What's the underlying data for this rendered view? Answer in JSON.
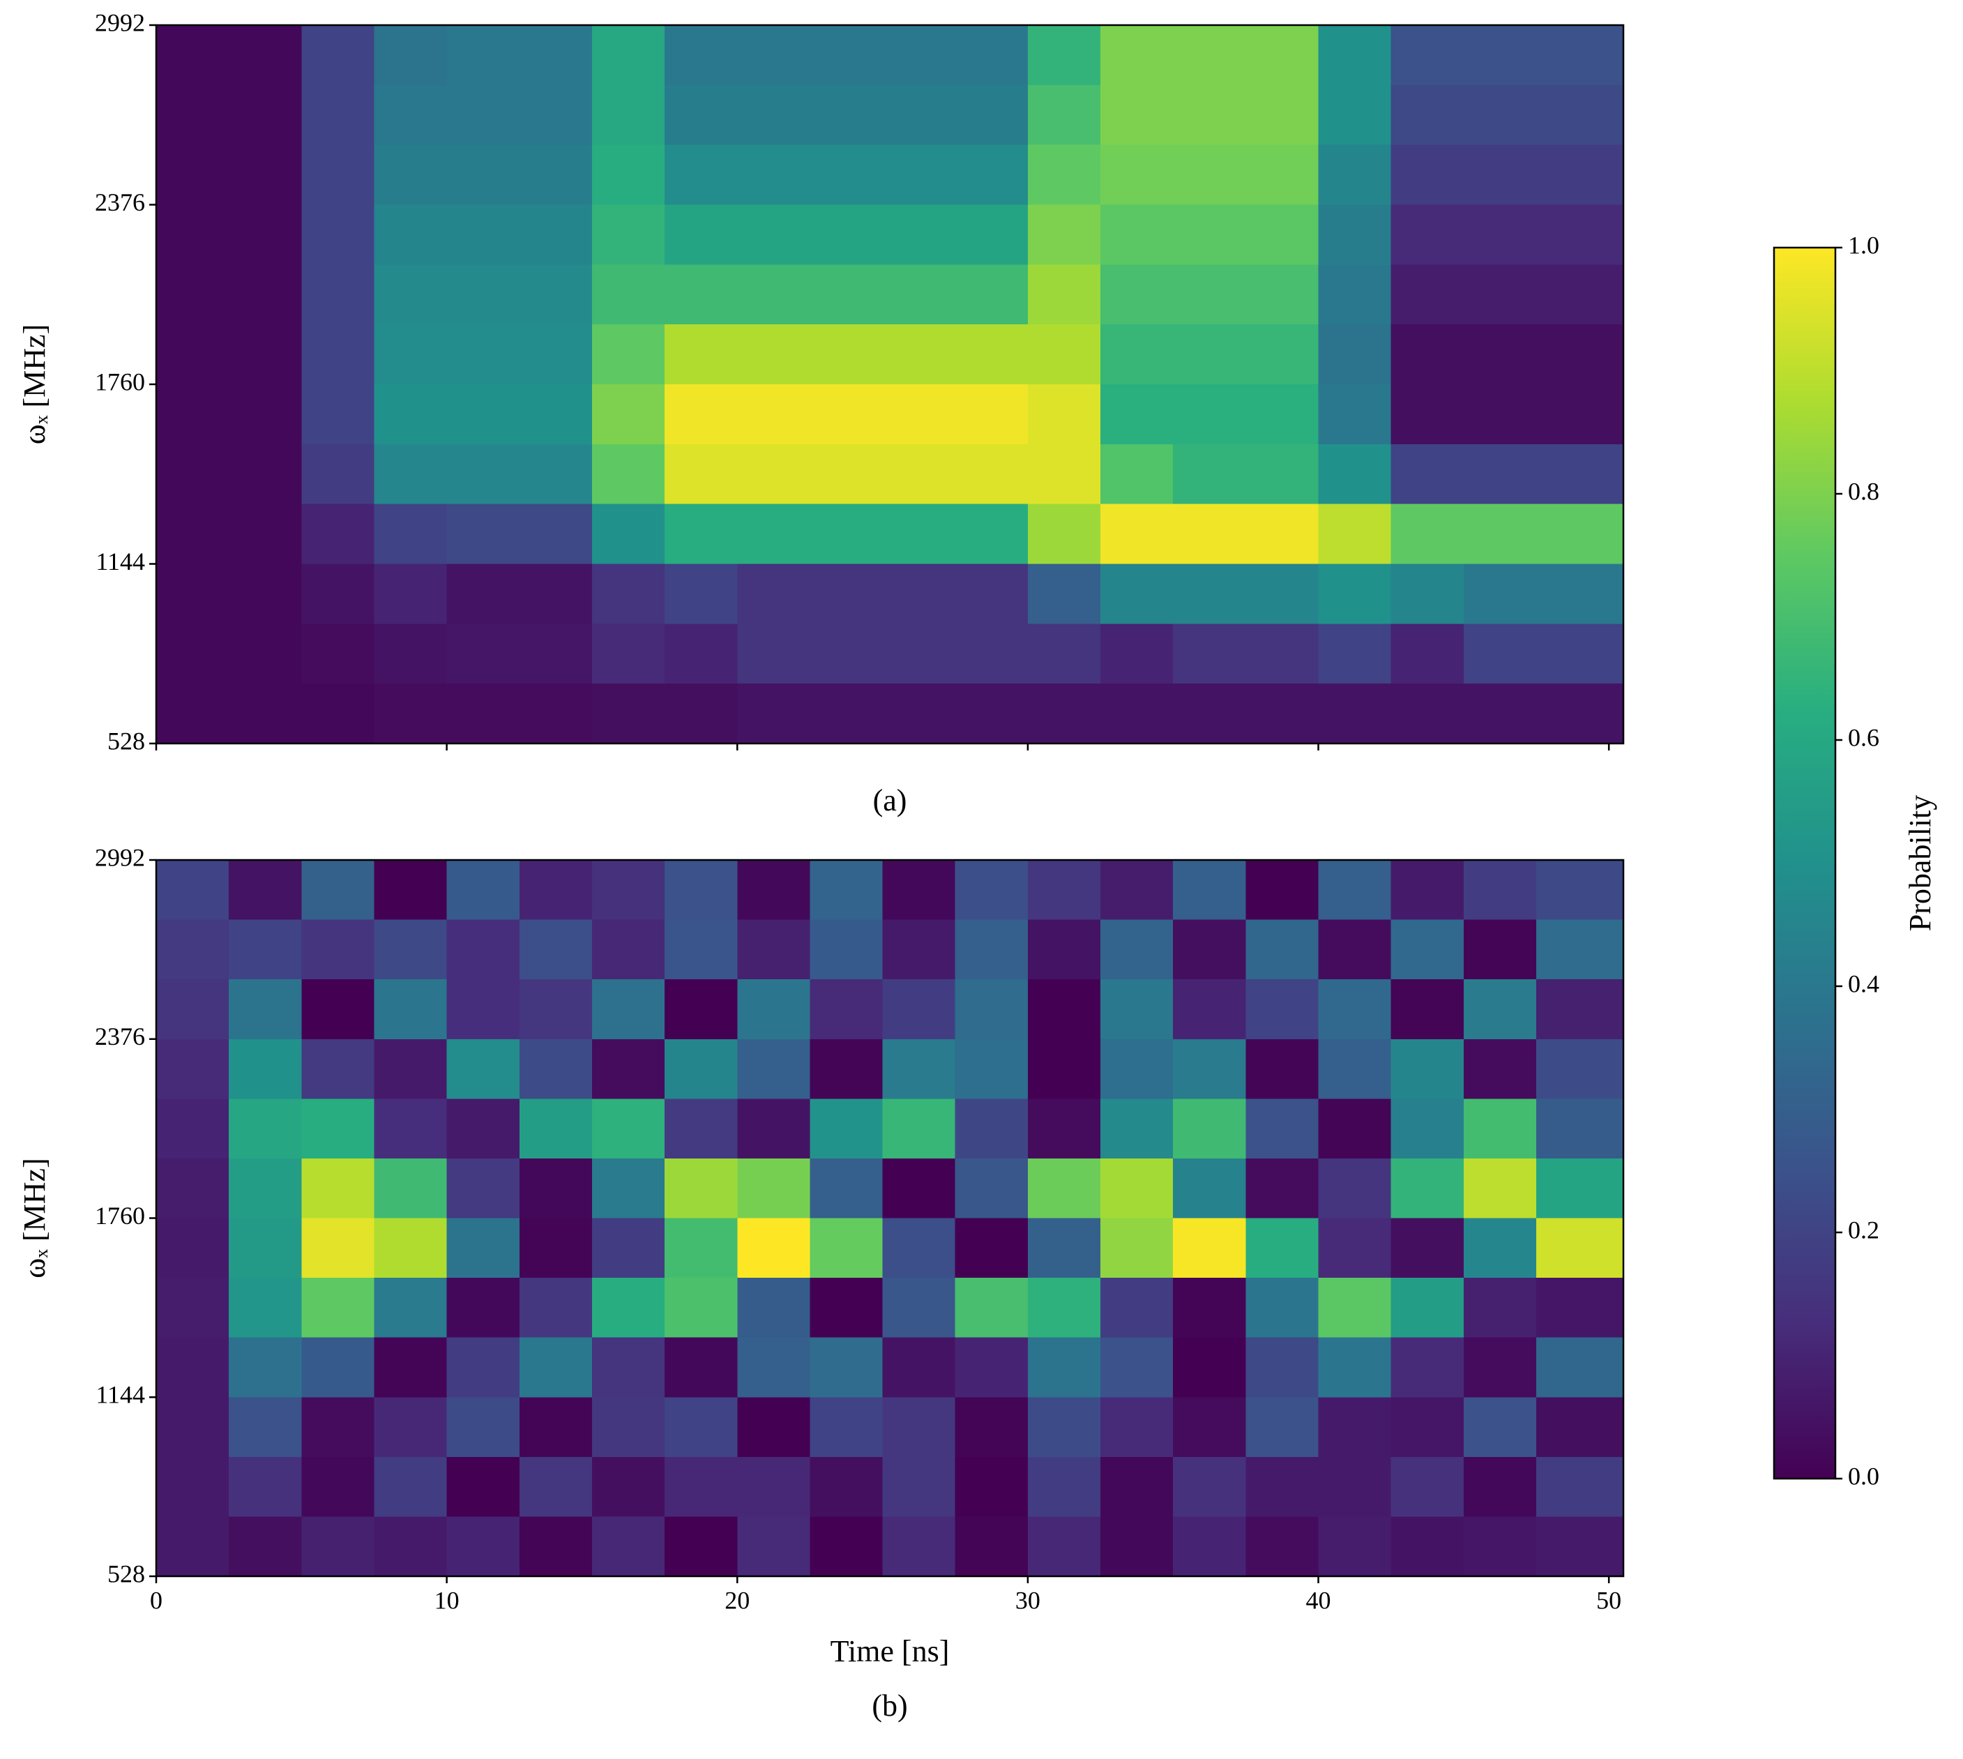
{
  "chart_data": [
    {
      "type": "heatmap",
      "caption": "(a)",
      "ylabel": "ωₓ [MHz]",
      "show_xtick_labels": false,
      "xlim": [
        0,
        50.5
      ],
      "ylim": [
        528,
        2992
      ],
      "xticks": [
        0,
        10,
        20,
        30,
        40,
        50
      ],
      "yticks": [
        528,
        1144,
        1760,
        2376,
        2992
      ],
      "x": [
        1.25,
        3.75,
        6.25,
        8.75,
        11.25,
        13.75,
        16.25,
        18.75,
        21.25,
        23.75,
        26.25,
        28.75,
        31.25,
        33.75,
        36.25,
        38.75,
        41.25,
        43.75,
        46.25,
        48.75
      ],
      "y": [
        2889,
        2684,
        2479,
        2273,
        2068,
        1863,
        1657,
        1452,
        1247,
        1041,
        836,
        631
      ],
      "values": [
        [
          0.02,
          0.02,
          0.2,
          0.38,
          0.4,
          0.4,
          0.6,
          0.4,
          0.4,
          0.4,
          0.4,
          0.4,
          0.65,
          0.8,
          0.8,
          0.8,
          0.5,
          0.25,
          0.25,
          0.25
        ],
        [
          0.02,
          0.02,
          0.2,
          0.4,
          0.4,
          0.4,
          0.6,
          0.42,
          0.42,
          0.42,
          0.42,
          0.42,
          0.7,
          0.8,
          0.8,
          0.8,
          0.5,
          0.22,
          0.22,
          0.22
        ],
        [
          0.02,
          0.02,
          0.2,
          0.42,
          0.42,
          0.42,
          0.62,
          0.48,
          0.48,
          0.48,
          0.48,
          0.48,
          0.75,
          0.78,
          0.78,
          0.78,
          0.45,
          0.18,
          0.18,
          0.18
        ],
        [
          0.02,
          0.02,
          0.2,
          0.45,
          0.45,
          0.45,
          0.65,
          0.58,
          0.58,
          0.58,
          0.58,
          0.58,
          0.8,
          0.74,
          0.74,
          0.74,
          0.42,
          0.12,
          0.12,
          0.12
        ],
        [
          0.02,
          0.02,
          0.2,
          0.47,
          0.47,
          0.47,
          0.68,
          0.68,
          0.68,
          0.68,
          0.68,
          0.68,
          0.85,
          0.7,
          0.7,
          0.7,
          0.4,
          0.08,
          0.08,
          0.08
        ],
        [
          0.02,
          0.02,
          0.2,
          0.48,
          0.48,
          0.48,
          0.75,
          0.88,
          0.88,
          0.88,
          0.88,
          0.88,
          0.88,
          0.66,
          0.66,
          0.66,
          0.38,
          0.04,
          0.04,
          0.04
        ],
        [
          0.02,
          0.02,
          0.2,
          0.5,
          0.5,
          0.5,
          0.8,
          0.98,
          0.98,
          0.98,
          0.98,
          0.98,
          0.95,
          0.63,
          0.63,
          0.63,
          0.4,
          0.04,
          0.04,
          0.04
        ],
        [
          0.02,
          0.02,
          0.18,
          0.46,
          0.46,
          0.46,
          0.75,
          0.95,
          0.95,
          0.95,
          0.95,
          0.95,
          0.95,
          0.72,
          0.65,
          0.65,
          0.5,
          0.2,
          0.2,
          0.2
        ],
        [
          0.02,
          0.02,
          0.1,
          0.2,
          0.22,
          0.22,
          0.5,
          0.62,
          0.62,
          0.62,
          0.62,
          0.62,
          0.85,
          0.98,
          0.98,
          0.98,
          0.9,
          0.75,
          0.75,
          0.75
        ],
        [
          0.02,
          0.02,
          0.05,
          0.1,
          0.05,
          0.05,
          0.15,
          0.2,
          0.15,
          0.15,
          0.15,
          0.15,
          0.3,
          0.45,
          0.45,
          0.45,
          0.5,
          0.45,
          0.4,
          0.4
        ],
        [
          0.02,
          0.02,
          0.03,
          0.05,
          0.06,
          0.06,
          0.12,
          0.1,
          0.15,
          0.15,
          0.15,
          0.15,
          0.15,
          0.1,
          0.15,
          0.15,
          0.2,
          0.1,
          0.2,
          0.2
        ],
        [
          0.02,
          0.02,
          0.02,
          0.03,
          0.03,
          0.03,
          0.04,
          0.04,
          0.05,
          0.05,
          0.05,
          0.05,
          0.05,
          0.05,
          0.05,
          0.05,
          0.05,
          0.05,
          0.05,
          0.05
        ]
      ]
    },
    {
      "type": "heatmap",
      "caption": "(b)",
      "ylabel": "ωₓ [MHz]",
      "xlabel": "Time [ns]",
      "show_xtick_labels": true,
      "xlim": [
        0,
        50.5
      ],
      "ylim": [
        528,
        2992
      ],
      "xticks": [
        0,
        10,
        20,
        30,
        40,
        50
      ],
      "yticks": [
        528,
        1144,
        1760,
        2376,
        2992
      ],
      "x": [
        1.25,
        3.75,
        6.25,
        8.75,
        11.25,
        13.75,
        16.25,
        18.75,
        21.25,
        23.75,
        26.25,
        28.75,
        31.25,
        33.75,
        36.25,
        38.75,
        41.25,
        43.75,
        46.25,
        48.75
      ],
      "y": [
        2889,
        2684,
        2479,
        2273,
        2068,
        1863,
        1657,
        1452,
        1247,
        1041,
        836,
        631
      ],
      "values": [
        [
          0.2,
          0.05,
          0.31,
          0.0,
          0.28,
          0.1,
          0.14,
          0.25,
          0.02,
          0.32,
          0.02,
          0.24,
          0.16,
          0.08,
          0.3,
          0.0,
          0.3,
          0.07,
          0.18,
          0.22
        ],
        [
          0.17,
          0.2,
          0.15,
          0.22,
          0.13,
          0.24,
          0.11,
          0.26,
          0.09,
          0.28,
          0.07,
          0.3,
          0.05,
          0.32,
          0.04,
          0.33,
          0.03,
          0.34,
          0.01,
          0.35
        ],
        [
          0.15,
          0.38,
          0.0,
          0.39,
          0.13,
          0.16,
          0.37,
          0.0,
          0.39,
          0.12,
          0.18,
          0.35,
          0.0,
          0.4,
          0.1,
          0.2,
          0.34,
          0.01,
          0.41,
          0.09
        ],
        [
          0.12,
          0.5,
          0.17,
          0.07,
          0.48,
          0.23,
          0.03,
          0.45,
          0.3,
          0.01,
          0.41,
          0.36,
          0.0,
          0.36,
          0.41,
          0.01,
          0.3,
          0.45,
          0.03,
          0.23
        ],
        [
          0.1,
          0.59,
          0.62,
          0.13,
          0.07,
          0.55,
          0.64,
          0.17,
          0.05,
          0.51,
          0.66,
          0.21,
          0.03,
          0.47,
          0.68,
          0.25,
          0.01,
          0.43,
          0.69,
          0.29
        ],
        [
          0.08,
          0.55,
          0.89,
          0.68,
          0.17,
          0.02,
          0.41,
          0.85,
          0.79,
          0.3,
          0.0,
          0.27,
          0.77,
          0.86,
          0.44,
          0.03,
          0.15,
          0.65,
          0.9,
          0.58
        ],
        [
          0.07,
          0.54,
          0.96,
          0.88,
          0.38,
          0.01,
          0.18,
          0.69,
          1.0,
          0.76,
          0.24,
          0.0,
          0.31,
          0.83,
          0.99,
          0.62,
          0.12,
          0.04,
          0.46,
          0.93
        ],
        [
          0.08,
          0.52,
          0.75,
          0.41,
          0.02,
          0.16,
          0.62,
          0.71,
          0.29,
          0.0,
          0.27,
          0.7,
          0.64,
          0.18,
          0.01,
          0.39,
          0.74,
          0.55,
          0.09,
          0.06
        ],
        [
          0.07,
          0.37,
          0.28,
          0.01,
          0.18,
          0.4,
          0.15,
          0.02,
          0.3,
          0.35,
          0.05,
          0.1,
          0.38,
          0.25,
          0.0,
          0.22,
          0.39,
          0.12,
          0.03,
          0.33
        ],
        [
          0.07,
          0.25,
          0.03,
          0.11,
          0.23,
          0.01,
          0.16,
          0.2,
          0.0,
          0.2,
          0.16,
          0.01,
          0.23,
          0.12,
          0.03,
          0.25,
          0.07,
          0.06,
          0.25,
          0.04
        ],
        [
          0.07,
          0.14,
          0.02,
          0.18,
          0.0,
          0.16,
          0.04,
          0.11,
          0.11,
          0.04,
          0.16,
          0.0,
          0.18,
          0.02,
          0.14,
          0.07,
          0.07,
          0.14,
          0.02,
          0.18
        ],
        [
          0.07,
          0.04,
          0.09,
          0.07,
          0.1,
          0.01,
          0.11,
          0.0,
          0.12,
          0.0,
          0.12,
          0.01,
          0.11,
          0.02,
          0.1,
          0.03,
          0.08,
          0.05,
          0.06,
          0.07
        ]
      ]
    }
  ],
  "colorbar": {
    "label": "Probability",
    "lim": [
      0,
      1
    ],
    "ticks": [
      {
        "value": 0,
        "label": "0.0"
      },
      0.2,
      0.4,
      0.6,
      0.8,
      {
        "value": 1,
        "label": "1.0"
      }
    ],
    "cmap": [
      "#440154",
      "#472d7b",
      "#3b528b",
      "#2c728e",
      "#21918c",
      "#28ae80",
      "#5ec962",
      "#addc30",
      "#fde725"
    ]
  }
}
